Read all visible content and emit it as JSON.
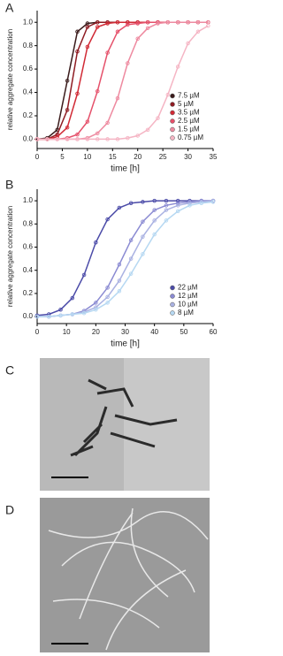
{
  "chart_data": [
    {
      "type": "scatter",
      "label": "A",
      "xlabel": "time [h]",
      "ylabel": "relative aggregate concentration",
      "xlim": [
        0,
        35
      ],
      "xticks": [
        0,
        5,
        10,
        15,
        20,
        25,
        30,
        35
      ],
      "ylim": [
        -0.08,
        1.1
      ],
      "yticks": [
        {
          "value": 0,
          "label": "0.0"
        },
        0.2,
        0.4,
        0.6,
        0.8,
        {
          "value": 1,
          "label": "1.0"
        }
      ],
      "legend": "lower right",
      "x": [
        0,
        2,
        4,
        6,
        8,
        10,
        12,
        14,
        16,
        18,
        20,
        22,
        24,
        26,
        28,
        30,
        32,
        34
      ],
      "series": [
        {
          "name": "7.5 µM",
          "color": "#3b1c1c",
          "values": [
            0,
            0.01,
            0.08,
            0.5,
            0.92,
            0.99,
            1,
            1,
            1,
            1,
            1,
            1,
            1,
            1,
            1,
            1,
            1,
            1
          ]
        },
        {
          "name": "5 µM",
          "color": "#8e1b22",
          "values": [
            0,
            0,
            0.04,
            0.25,
            0.75,
            0.96,
            1,
            1,
            1,
            1,
            1,
            1,
            1,
            1,
            1,
            1,
            1,
            1
          ]
        },
        {
          "name": "3.5 µM",
          "color": "#d12a35",
          "values": [
            0,
            0,
            0.02,
            0.1,
            0.39,
            0.79,
            0.96,
            0.99,
            1,
            1,
            1,
            1,
            1,
            1,
            1,
            1,
            1,
            1
          ]
        },
        {
          "name": "2.5 µM",
          "color": "#e5506a",
          "values": [
            0,
            0,
            0,
            0.01,
            0.04,
            0.15,
            0.41,
            0.74,
            0.92,
            0.98,
            0.99,
            1,
            1,
            1,
            1,
            1,
            1,
            1
          ]
        },
        {
          "name": "1.5 µM",
          "color": "#ee8aa0",
          "values": [
            0,
            0,
            0,
            0,
            0,
            0.01,
            0.05,
            0.14,
            0.35,
            0.65,
            0.86,
            0.95,
            0.99,
            1,
            1,
            1,
            1,
            1
          ]
        },
        {
          "name": "0.75 µM",
          "color": "#f5b5c4",
          "values": [
            0,
            0,
            0,
            0,
            0,
            0,
            0,
            0,
            0,
            0.01,
            0.03,
            0.08,
            0.18,
            0.38,
            0.62,
            0.82,
            0.92,
            0.97
          ]
        }
      ]
    },
    {
      "type": "scatter",
      "label": "B",
      "xlabel": "time [h]",
      "ylabel": "relative aggregate concentration",
      "xlim": [
        0,
        60
      ],
      "xticks": [
        0,
        10,
        20,
        30,
        40,
        50,
        60
      ],
      "ylim": [
        -0.06,
        1.1
      ],
      "yticks": [
        {
          "value": 0,
          "label": "0.0"
        },
        0.2,
        0.4,
        0.6,
        0.8,
        {
          "value": 1,
          "label": "1.0"
        }
      ],
      "legend": "lower right",
      "x": [
        0,
        4,
        8,
        12,
        16,
        20,
        24,
        28,
        32,
        36,
        40,
        44,
        48,
        52,
        56,
        60
      ],
      "series": [
        {
          "name": "22 µM",
          "color": "#4b4ba8",
          "values": [
            0.01,
            0.02,
            0.06,
            0.16,
            0.36,
            0.64,
            0.84,
            0.94,
            0.98,
            0.99,
            1,
            1,
            1,
            1,
            1,
            1
          ]
        },
        {
          "name": "12 µM",
          "color": "#8a8ad2",
          "values": [
            0,
            0,
            0.01,
            0.02,
            0.05,
            0.12,
            0.25,
            0.45,
            0.66,
            0.82,
            0.92,
            0.96,
            0.98,
            0.99,
            1,
            1
          ]
        },
        {
          "name": "10 µM",
          "color": "#aab2e2",
          "values": [
            0,
            0,
            0.01,
            0.02,
            0.04,
            0.08,
            0.17,
            0.31,
            0.5,
            0.69,
            0.83,
            0.92,
            0.96,
            0.98,
            0.99,
            1
          ]
        },
        {
          "name": "8 µM",
          "color": "#b6d8f2",
          "values": [
            0,
            0,
            0.01,
            0.02,
            0.03,
            0.06,
            0.12,
            0.22,
            0.37,
            0.54,
            0.71,
            0.83,
            0.91,
            0.96,
            0.98,
            0.99
          ]
        }
      ]
    }
  ],
  "panels": [
    {
      "label": "C"
    },
    {
      "label": "D"
    }
  ]
}
